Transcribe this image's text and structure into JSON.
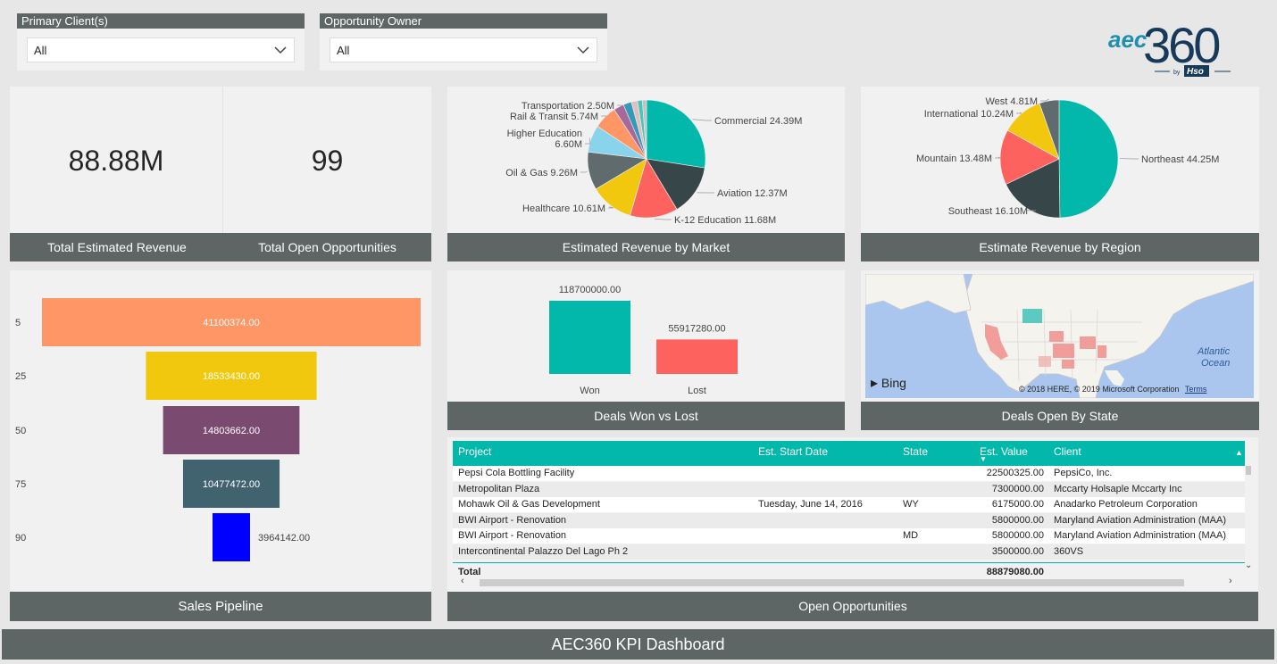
{
  "filters": [
    {
      "label": "Primary Client(s)",
      "value": "All"
    },
    {
      "label": "Opportunity Owner",
      "value": "All"
    }
  ],
  "logo": {
    "main_a": "aec",
    "main_b": "360",
    "by": "by",
    "brand": "Hso"
  },
  "kpis": {
    "revenue": {
      "value": "88.88M",
      "label": "Total Estimated Revenue"
    },
    "opportunities": {
      "value": "99",
      "label": "Total Open Opportunities"
    }
  },
  "captions": {
    "market": "Estimated Revenue by Market",
    "region": "Estimate Revenue by Region",
    "pipeline": "Sales Pipeline",
    "wonlost": "Deals Won vs Lost",
    "state": "Deals Open By State",
    "opps": "Open Opportunities",
    "footer": "AEC360 KPI Dashboard"
  },
  "chart_data": [
    {
      "type": "pie",
      "title": "Estimated Revenue by Market",
      "slices": [
        {
          "label": "Commercial 24.39M",
          "value": 24.39,
          "color": "#01b8aa"
        },
        {
          "label": "Aviation 12.37M",
          "value": 12.37,
          "color": "#374649"
        },
        {
          "label": "K-12 Education 11.68M",
          "value": 11.68,
          "color": "#fd625e"
        },
        {
          "label": "Healthcare 10.61M",
          "value": 10.61,
          "color": "#f2c80f"
        },
        {
          "label": "Oil & Gas 9.26M",
          "value": 9.26,
          "color": "#5f6b6d"
        },
        {
          "label": "Higher Education\n6.60M",
          "value": 6.6,
          "color": "#8ad4eb"
        },
        {
          "label": "Rail & Transit 5.74M",
          "value": 5.74,
          "color": "#fe9666"
        },
        {
          "label": "Transportation 2.50M",
          "value": 2.5,
          "color": "#a66999"
        },
        {
          "label": "",
          "value": 2.0,
          "color": "#3599b8"
        },
        {
          "label": "",
          "value": 1.5,
          "color": "#dfbfbf"
        },
        {
          "label": "",
          "value": 1.2,
          "color": "#4ac5bb"
        },
        {
          "label": "",
          "value": 1.0,
          "color": "#c2c2c2"
        }
      ]
    },
    {
      "type": "pie",
      "title": "Estimate Revenue by Region",
      "slices": [
        {
          "label": "Northeast 44.25M",
          "value": 44.25,
          "color": "#01b8aa"
        },
        {
          "label": "Southeast 16.10M",
          "value": 16.1,
          "color": "#374649"
        },
        {
          "label": "Mountain 13.48M",
          "value": 13.48,
          "color": "#fd625e"
        },
        {
          "label": "International 10.24M",
          "value": 10.24,
          "color": "#f2c80f"
        },
        {
          "label": "West 4.81M",
          "value": 4.81,
          "color": "#5f6b6d"
        }
      ]
    },
    {
      "type": "bar",
      "title": "Sales Pipeline",
      "orientation": "funnel",
      "categories": [
        "5",
        "25",
        "50",
        "75",
        "90"
      ],
      "values": [
        41100374.0,
        18533430.0,
        14803662.0,
        10477472.0,
        3964142.0
      ],
      "value_labels": [
        "41100374.00",
        "18533430.00",
        "14803662.00",
        "10477472.00",
        "3964142.00"
      ],
      "colors": [
        "#fe9666",
        "#f2c80f",
        "#7b4a70",
        "#41626f",
        "#0000ff"
      ]
    },
    {
      "type": "bar",
      "title": "Deals Won vs Lost",
      "categories": [
        "Won",
        "Lost"
      ],
      "values": [
        118700000.0,
        55917280.0
      ],
      "value_labels": [
        "118700000.00",
        "55917280.00"
      ],
      "colors": [
        "#01b8aa",
        "#fd625e"
      ]
    }
  ],
  "map": {
    "ocean_label": "Atlantic\nOcean",
    "bing": "Bing",
    "copyright": "© 2018 HERE, © 2019 Microsoft Corporation",
    "terms": "Terms"
  },
  "table": {
    "columns": [
      "Project",
      "Est. Start Date",
      "State",
      "Est. Value",
      "Client"
    ],
    "rows": [
      [
        "Pepsi Cola Bottling Facility",
        "",
        "",
        "22500325.00",
        "PepsiCo, Inc."
      ],
      [
        "Metropolitan Plaza",
        "",
        "",
        "7300000.00",
        "Mccarty Holsaple Mccarty Inc"
      ],
      [
        "Mohawk Oil & Gas Development",
        "Tuesday, June 14, 2016",
        "WY",
        "6175000.00",
        "Anadarko Petroleum Corporation"
      ],
      [
        "BWI Airport - Renovation",
        "",
        "",
        "5800000.00",
        "Maryland Aviation Administration (MAA)"
      ],
      [
        "BWI Airport - Renovation",
        "",
        "MD",
        "5800000.00",
        "Maryland Aviation Administration (MAA)"
      ],
      [
        "Intercontinental Palazzo Del Lago Ph 2",
        "",
        "",
        "3500000.00",
        "360VS"
      ]
    ],
    "total_label": "Total",
    "total_value": "88879080.00"
  }
}
